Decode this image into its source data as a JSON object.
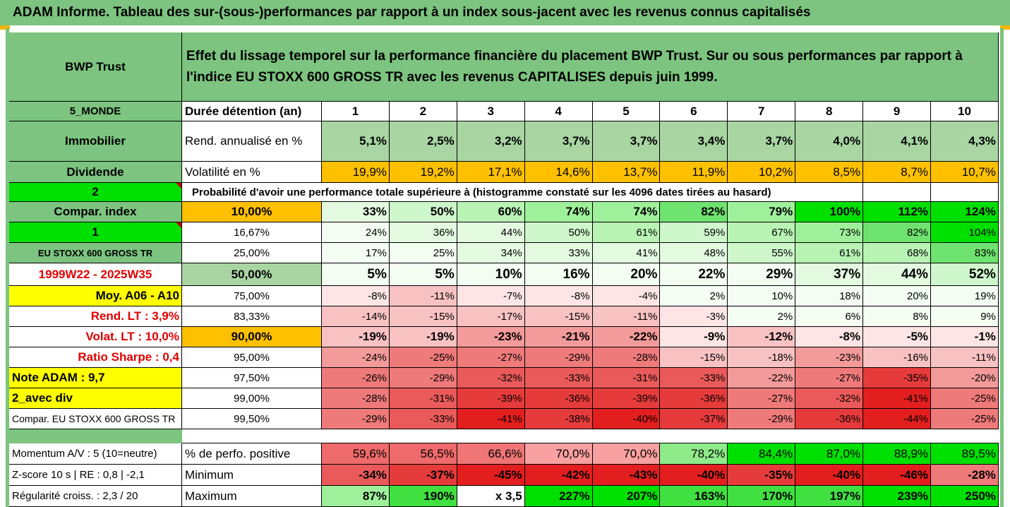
{
  "title": "ADAM Informe. Tableau des sur-(sous-)performances par rapport à un index sous-jacent avec les revenus connus capitalisés",
  "header": {
    "fund": "BWP Trust",
    "description": "Effet du lissage temporel sur la performance financière du placement BWP Trust. Sur ou sous performances par rapport à l'indice EU STOXX 600 GROSS TR avec les revenus CAPITALISES depuis juin 1999."
  },
  "years_row": {
    "left": "5_MONDE",
    "label": "Durée détention (an)",
    "years": [
      "1",
      "2",
      "3",
      "4",
      "5",
      "6",
      "7",
      "8",
      "9",
      "10"
    ]
  },
  "rend_row": {
    "left": "Immobilier",
    "label": "Rend. annualisé en %",
    "values": [
      "5,1%",
      "2,5%",
      "3,2%",
      "3,7%",
      "3,7%",
      "3,4%",
      "3,7%",
      "4,0%",
      "4,1%",
      "4,3%"
    ]
  },
  "vol_row": {
    "left": "Dividende",
    "label": "Volatilité en %",
    "values": [
      "19,9%",
      "19,2%",
      "17,1%",
      "14,6%",
      "13,7%",
      "11,9%",
      "10,2%",
      "8,5%",
      "8,7%",
      "10,7%"
    ]
  },
  "prob_row": {
    "left": "2",
    "text": "Probabilité d'avoir une performance totale supérieure à (histogramme constaté sur les 4096 dates tirées au hasard)"
  },
  "prob_table": [
    {
      "left": "Compar. index",
      "threshold": "10,00%",
      "values": [
        "33%",
        "50%",
        "60%",
        "74%",
        "74%",
        "82%",
        "79%",
        "100%",
        "112%",
        "124%"
      ]
    },
    {
      "left": "1",
      "threshold": "16,67%",
      "values": [
        "24%",
        "36%",
        "44%",
        "50%",
        "61%",
        "59%",
        "67%",
        "73%",
        "82%",
        "104%"
      ]
    },
    {
      "left": "EU STOXX 600 GROSS TR",
      "threshold": "25,00%",
      "values": [
        "17%",
        "25%",
        "34%",
        "33%",
        "41%",
        "48%",
        "55%",
        "61%",
        "68%",
        "83%"
      ]
    },
    {
      "left": "1999W22 - 2025W35",
      "threshold": "50,00%",
      "values": [
        "5%",
        "5%",
        "10%",
        "16%",
        "20%",
        "22%",
        "29%",
        "37%",
        "44%",
        "52%"
      ]
    },
    {
      "left": "Moy. A06 - A10",
      "threshold": "75,00%",
      "values": [
        "-8%",
        "-11%",
        "-7%",
        "-8%",
        "-4%",
        "2%",
        "10%",
        "18%",
        "20%",
        "19%"
      ]
    },
    {
      "left": "Rend. LT :    3,9%",
      "threshold": "83,33%",
      "values": [
        "-14%",
        "-15%",
        "-17%",
        "-15%",
        "-11%",
        "-3%",
        "2%",
        "6%",
        "8%",
        "9%"
      ]
    },
    {
      "left": "Volat. LT :    10,0%",
      "threshold": "90,00%",
      "values": [
        "-19%",
        "-19%",
        "-23%",
        "-21%",
        "-22%",
        "-9%",
        "-12%",
        "-8%",
        "-5%",
        "-1%"
      ]
    },
    {
      "left": "Ratio Sharpe :    0,4",
      "threshold": "95,00%",
      "values": [
        "-24%",
        "-25%",
        "-27%",
        "-29%",
        "-28%",
        "-15%",
        "-18%",
        "-23%",
        "-16%",
        "-11%"
      ]
    },
    {
      "left": "Note ADAM : 9,7",
      "threshold": "97,50%",
      "values": [
        "-26%",
        "-29%",
        "-32%",
        "-33%",
        "-31%",
        "-33%",
        "-22%",
        "-27%",
        "-35%",
        "-20%"
      ]
    },
    {
      "left": "2_avec div",
      "threshold": "99,00%",
      "values": [
        "-28%",
        "-31%",
        "-39%",
        "-36%",
        "-39%",
        "-36%",
        "-27%",
        "-32%",
        "-41%",
        "-25%"
      ]
    },
    {
      "left": "Compar. EU STOXX 600 GROSS TR",
      "threshold": "99,50%",
      "values": [
        "-29%",
        "-33%",
        "-41%",
        "-38%",
        "-40%",
        "-37%",
        "-29%",
        "-36%",
        "-44%",
        "-25%"
      ]
    }
  ],
  "summary": [
    {
      "left": "Momentum A/V : 5 (10=neutre)",
      "label": "% de perfo. positive",
      "values": [
        "59,6%",
        "56,5%",
        "66,6%",
        "70,0%",
        "70,0%",
        "78,2%",
        "84,4%",
        "87,0%",
        "88,9%",
        "89,5%"
      ]
    },
    {
      "left": "Z-score 10 s  |  RE : 0,8  |  -2,1",
      "label": "Minimum",
      "values": [
        "-34%",
        "-37%",
        "-45%",
        "-42%",
        "-43%",
        "-40%",
        "-35%",
        "-40%",
        "-46%",
        "-28%"
      ]
    },
    {
      "left": "Régularité croiss. : 2,3 / 20",
      "label": "Maximum",
      "values": [
        "87%",
        "190%",
        "x 3,5",
        "227%",
        "207%",
        "163%",
        "170%",
        "197%",
        "239%",
        "250%"
      ]
    }
  ],
  "colors": {
    "header_green": "#7cc47f",
    "bright_green": "#00e000",
    "yellow": "#ffff00",
    "orange": "#ffc000",
    "red_text": "#e00000"
  }
}
